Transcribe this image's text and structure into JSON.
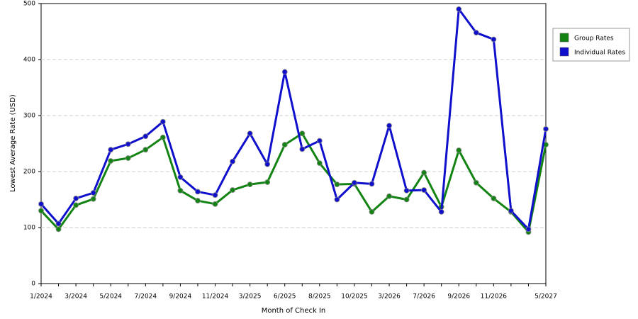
{
  "chart_data": {
    "type": "line",
    "x_label": "Month of Check In",
    "y_label": "Lowest Average Rate (USD)",
    "categories": [
      "1/2024",
      null,
      "3/2024",
      null,
      "5/2024",
      null,
      "7/2024",
      null,
      "9/2024",
      null,
      "11/2024",
      null,
      "3/2025",
      null,
      "6/2025",
      null,
      "8/2025",
      null,
      "10/2025",
      null,
      "3/2026",
      null,
      "7/2026",
      null,
      "9/2026",
      null,
      "11/2026",
      null,
      null,
      "5/2027"
    ],
    "series": [
      {
        "name": "Group Rates",
        "color": "#138413",
        "values": [
          130,
          97,
          140,
          151,
          219,
          224,
          239,
          261,
          166,
          148,
          142,
          167,
          177,
          181,
          248,
          268,
          215,
          177,
          178,
          128,
          156,
          150,
          198,
          137,
          238,
          180,
          152,
          128,
          92,
          248
        ]
      },
      {
        "name": "Individual Rates",
        "color": "#1010cc",
        "values": [
          142,
          107,
          152,
          162,
          239,
          249,
          263,
          289,
          190,
          164,
          158,
          218,
          268,
          213,
          378,
          240,
          255,
          150,
          180,
          178,
          282,
          166,
          167,
          128,
          490,
          448,
          436,
          130,
          97,
          276
        ]
      }
    ],
    "ylim": [
      0,
      500
    ],
    "yticks": [
      0,
      100,
      200,
      300,
      400,
      500
    ],
    "grid": true,
    "legend": "right"
  }
}
